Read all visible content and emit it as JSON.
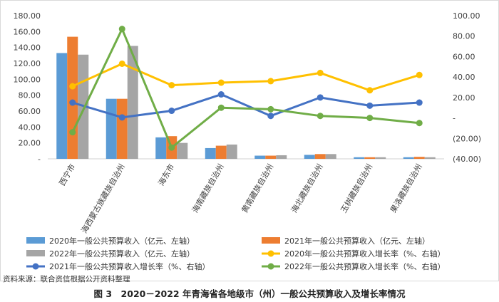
{
  "chart_data": {
    "type": "bar",
    "categories": [
      "西宁市",
      "海西蒙古族藏族自治州",
      "海东市",
      "海南藏族自治州",
      "黄南藏族自治州",
      "海北藏族自治州",
      "玉树藏族自治州",
      "果洛藏族自治州"
    ],
    "bar_series": [
      {
        "name": "2020年一般公共预算收入（亿元、左轴）",
        "color": "#5b9bd5",
        "values": [
          133.0,
          75.5,
          27.0,
          13.5,
          4.0,
          5.0,
          2.0,
          2.0
        ]
      },
      {
        "name": "2021年一般公共预算收入（亿元、左轴）",
        "color": "#ed7d31",
        "values": [
          153.5,
          75.5,
          28.5,
          16.5,
          4.0,
          6.0,
          2.0,
          2.5
        ]
      },
      {
        "name": "2022年一般公共预算收入（亿元、左轴）",
        "color": "#a5a5a5",
        "values": [
          131.0,
          142.0,
          20.0,
          18.0,
          4.5,
          6.0,
          2.0,
          2.0
        ]
      }
    ],
    "line_series": [
      {
        "name": "2020年一般公共预算收入增长率（%、右轴）",
        "color": "#ffc000",
        "values": [
          31.0,
          53.0,
          32.0,
          34.5,
          36.0,
          44.0,
          27.0,
          42.0
        ]
      },
      {
        "name": "2021年一般公共预算收入增长率（%、右轴）",
        "color": "#4472c4",
        "values": [
          15.0,
          0.5,
          7.0,
          23.0,
          2.0,
          20.0,
          12.0,
          15.0
        ]
      },
      {
        "name": "2022年一般公共预算收入增长率（%、右轴）",
        "color": "#70ad47",
        "values": [
          -14.0,
          87.0,
          -29.0,
          10.0,
          8.5,
          2.0,
          0.0,
          -5.0
        ]
      }
    ],
    "y_left": {
      "min": 0,
      "max": 180,
      "step": 20,
      "tick_labels": [
        "-",
        "20.00",
        "40.00",
        "60.00",
        "80.00",
        "100.00",
        "120.00",
        "140.00",
        "160.00",
        "180.00"
      ]
    },
    "y_right": {
      "min": -40,
      "max": 100,
      "step": 20,
      "tick_labels": [
        "(40.00)",
        "(20.00)",
        "-",
        "20.00",
        "40.00",
        "60.00",
        "80.00",
        "100.00"
      ]
    },
    "legend_position": "bottom",
    "grid": false
  },
  "source": "资料来源：联合资信根据公开资料整理",
  "caption": "图 3　2020－2022 年青海省各地级市（州）一般公共预算收入及增长率情况"
}
